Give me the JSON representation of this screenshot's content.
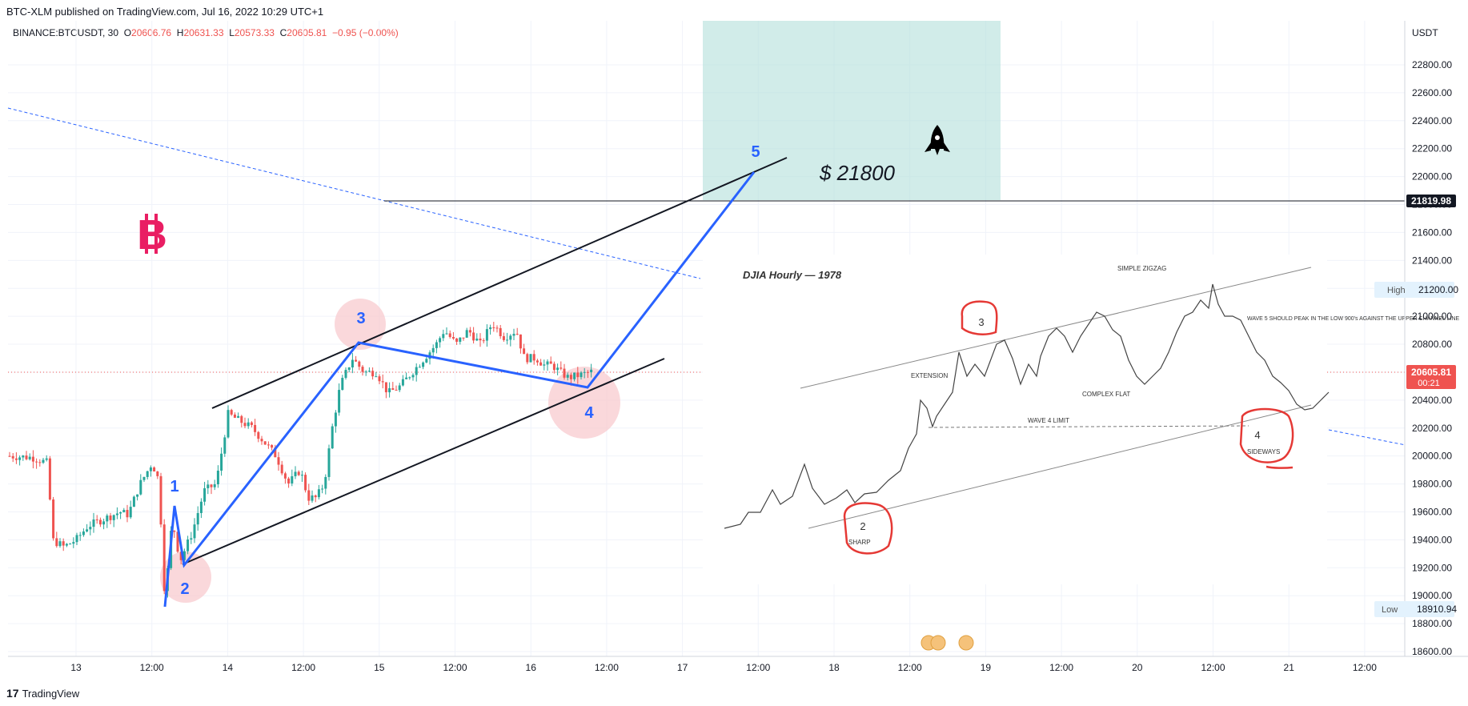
{
  "header": {
    "published": "BTC-XLM published on TradingView.com, Jul 16, 2022 10:29 UTC+1"
  },
  "legend": {
    "symbol": "BINANCE:BTCUSDT, 30",
    "open_label": "O",
    "open": "20606.76",
    "high_label": "H",
    "high": "20631.33",
    "low_label": "L",
    "low": "20573.33",
    "close_label": "C",
    "close": "20605.81",
    "change": "−0.95 (−0.00%)"
  },
  "footer": {
    "brand": "TradingView",
    "logo": "17"
  },
  "chart_data": {
    "type": "candlestick",
    "currency": "USDT",
    "y_ticks": [
      "22800.00",
      "22600.00",
      "22400.00",
      "22200.00",
      "22000.00",
      "21800.00",
      "21600.00",
      "21400.00",
      "21200.00",
      "21000.00",
      "20800.00",
      "20600.00",
      "20400.00",
      "20200.00",
      "20000.00",
      "19800.00",
      "19600.00",
      "19400.00",
      "19200.00",
      "19000.00",
      "18800.00",
      "18600.00"
    ],
    "ylim": [
      18500,
      23000
    ],
    "x_ticks": [
      "13",
      "12:00",
      "14",
      "12:00",
      "15",
      "12:00",
      "16",
      "12:00",
      "17",
      "12:00",
      "18",
      "12:00",
      "19",
      "12:00",
      "20",
      "12:00",
      "21",
      "12:00"
    ],
    "price_labels": {
      "target": "21819.98",
      "last": "20605.81",
      "countdown": "00:21",
      "high_label": "High",
      "high": "21200.00",
      "low_label": "Low",
      "low": "18910.94"
    },
    "wave_labels": [
      "1",
      "2",
      "3",
      "4",
      "5"
    ],
    "target_text": "$ 21800",
    "bitcoin_symbol": "B",
    "colors": {
      "up": "#26a69a",
      "down": "#ef5350",
      "wave": "#2962ff",
      "zone": "#b2dfdb",
      "circle": "#f8c8cc",
      "btc": "#e91e63"
    },
    "inset": {
      "title": "DJIA Hourly — 1978",
      "labels": [
        "SIMPLE ZIGZAG",
        "EXTENSION",
        "COMPLEX FLAT",
        "WAVE 4 LIMIT",
        "SHARP",
        "SIDEWAYS",
        "WAVE 5 SHOULD PEAK IN THE LOW 900's AGAINST THE UPPER CHANNEL LINE"
      ],
      "marks": [
        "2",
        "3",
        "4"
      ]
    }
  }
}
